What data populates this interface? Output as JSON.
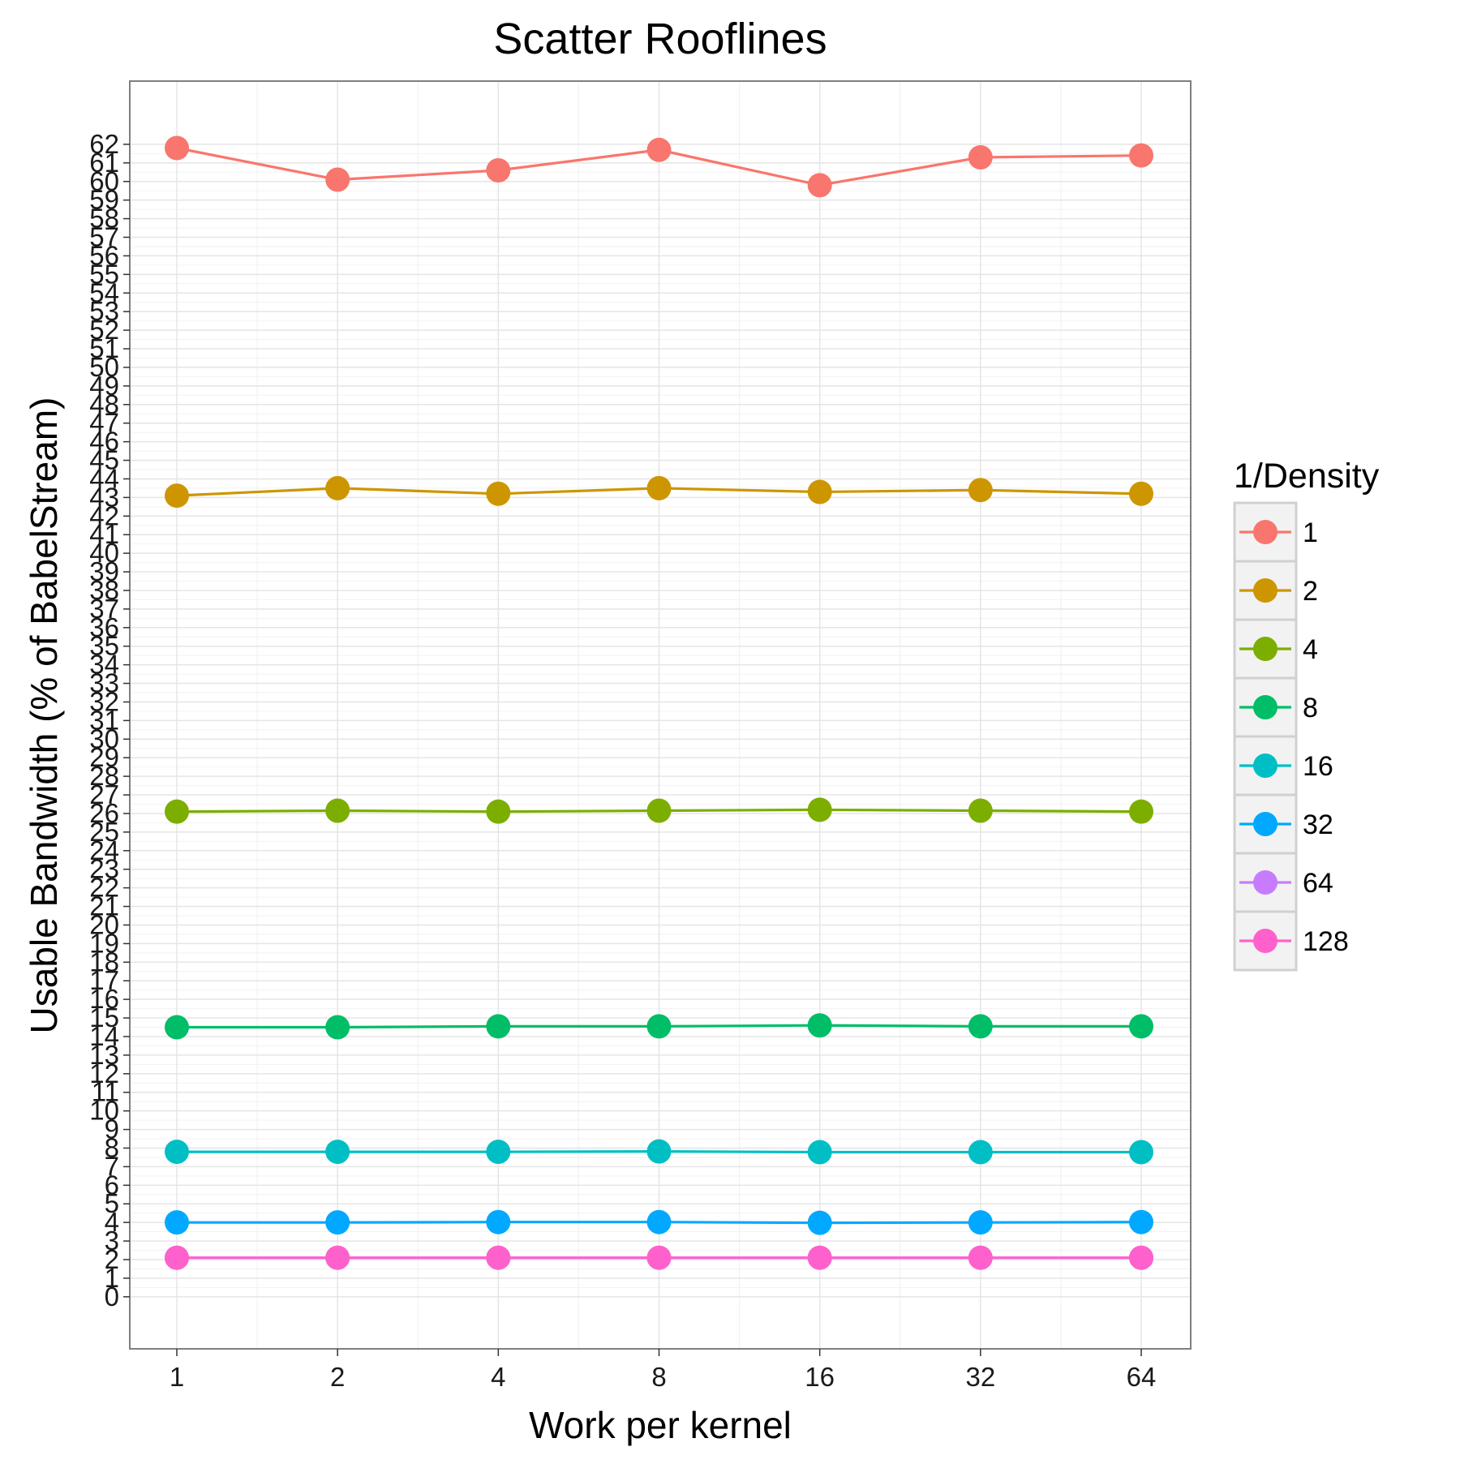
{
  "chart_data": {
    "type": "line",
    "title": "Scatter Rooflines",
    "xlabel": "Work per kernel",
    "ylabel": "Usable Bandwidth (% of BabelStream)",
    "x_scale": "log2",
    "categories": [
      "1",
      "2",
      "4",
      "8",
      "16",
      "32",
      "64"
    ],
    "x": [
      1,
      2,
      4,
      8,
      16,
      32,
      64
    ],
    "y_ticks": [
      0,
      1,
      2,
      3,
      4,
      5,
      6,
      7,
      8,
      9,
      10,
      11,
      12,
      13,
      14,
      15,
      16,
      17,
      18,
      19,
      20,
      21,
      22,
      23,
      24,
      25,
      26,
      27,
      28,
      29,
      30,
      31,
      32,
      33,
      34,
      35,
      36,
      37,
      38,
      39,
      40,
      41,
      42,
      43,
      44,
      45,
      46,
      47,
      48,
      49,
      50,
      51,
      52,
      53,
      54,
      55,
      56,
      57,
      58,
      59,
      60,
      61,
      62
    ],
    "ylim": [
      -2.8,
      65.4
    ],
    "grid": true,
    "legend_title": "1/Density",
    "legend_position": "right",
    "series": [
      {
        "name": "1",
        "color": "#F8766D",
        "values": [
          61.8,
          60.1,
          60.6,
          61.7,
          59.8,
          61.3,
          61.4
        ]
      },
      {
        "name": "2",
        "color": "#CD9600",
        "values": [
          43.1,
          43.5,
          43.2,
          43.5,
          43.3,
          43.4,
          43.2
        ]
      },
      {
        "name": "4",
        "color": "#7CAE00",
        "values": [
          26.1,
          26.15,
          26.1,
          26.15,
          26.2,
          26.15,
          26.1
        ]
      },
      {
        "name": "8",
        "color": "#00BE67",
        "values": [
          14.5,
          14.5,
          14.55,
          14.55,
          14.6,
          14.55,
          14.55
        ]
      },
      {
        "name": "16",
        "color": "#00BFC4",
        "values": [
          7.8,
          7.8,
          7.8,
          7.82,
          7.78,
          7.78,
          7.78
        ]
      },
      {
        "name": "32",
        "color": "#00A9FF",
        "values": [
          4.0,
          4.0,
          4.02,
          4.02,
          3.98,
          4.0,
          4.02
        ]
      },
      {
        "name": "64",
        "color": "#C77CFF",
        "values": [
          2.1,
          2.1,
          2.1,
          2.1,
          2.1,
          2.1,
          2.1
        ]
      },
      {
        "name": "128",
        "color": "#FF61CC",
        "values": [
          2.1,
          2.1,
          2.1,
          2.1,
          2.1,
          2.1,
          2.1
        ]
      }
    ]
  }
}
